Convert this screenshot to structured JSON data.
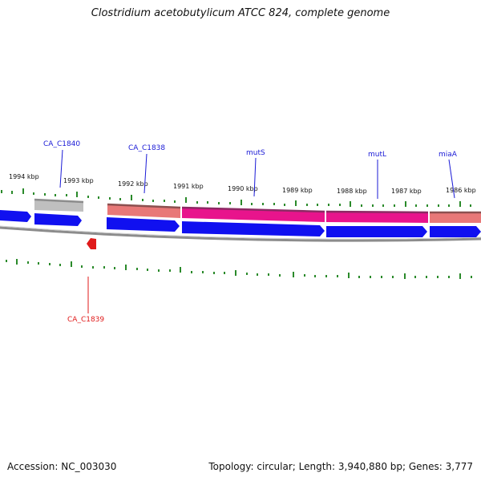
{
  "title": "Clostridium acetobutylicum ATCC 824, complete genome",
  "footer": {
    "accession": "Accession: NC_003030",
    "summary": "Topology: circular; Length: 3,940,880 bp; Genes: 3,777"
  },
  "colors": {
    "forward_gene": "#1010f0",
    "grey_band": "#bfbfbf",
    "salmon_band": "#e87878",
    "magenta_band": "#e8148c",
    "backbone": "#8c8c8c",
    "tick": "#2a8a2a",
    "label_blue": "#1a1ad6",
    "label_red": "#e01a1a"
  },
  "kbp_ticks": [
    "1994 kbp",
    "1993 kbp",
    "1992 kbp",
    "1991 kbp",
    "1990 kbp",
    "1989 kbp",
    "1988 kbp",
    "1987 kbp",
    "1986 kbp"
  ],
  "gene_labels": [
    "CA_C1840",
    "CA_C1838",
    "mutS",
    "mutL",
    "miaA",
    "CA_C1839"
  ]
}
